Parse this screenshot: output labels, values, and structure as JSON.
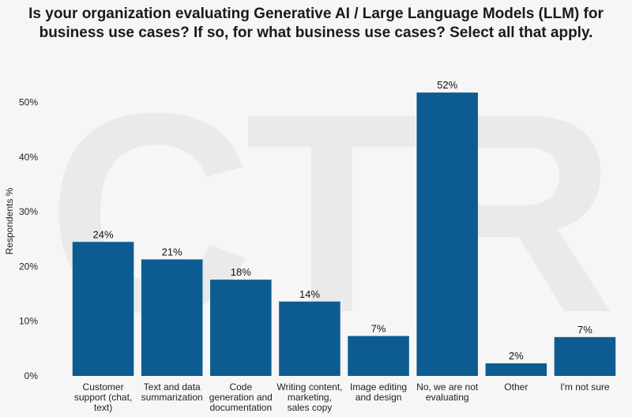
{
  "chart_data": {
    "type": "bar",
    "title_lines": [
      "Is your organization evaluating Generative AI / Large Language Models (LLM) for",
      "business use cases? If so, for what business use cases? Select all that apply."
    ],
    "ylabel": "Respondents %",
    "xlabel": "",
    "ylim": [
      0,
      55
    ],
    "yticks": [
      "0%",
      "10%",
      "20%",
      "30%",
      "40%",
      "50%"
    ],
    "ytick_values": [
      0,
      10,
      20,
      30,
      40,
      50
    ],
    "categories": [
      [
        "Customer",
        "support (chat,",
        "text)"
      ],
      [
        "Text and data",
        "summarization"
      ],
      [
        "Code",
        "generation and",
        "documentation"
      ],
      [
        "Writing content,",
        "marketing,",
        "sales copy"
      ],
      [
        "Image editing",
        "and design"
      ],
      [
        "No, we are not",
        "evaluating"
      ],
      [
        "Other"
      ],
      [
        "I'm not sure"
      ]
    ],
    "values": [
      24.5,
      21.3,
      17.6,
      13.6,
      7.3,
      51.8,
      2.3,
      7.1
    ],
    "data_labels": [
      "24%",
      "21%",
      "18%",
      "14%",
      "7%",
      "52%",
      "2%",
      "7%"
    ],
    "bar_color": "#0d5c91",
    "grid": false
  }
}
